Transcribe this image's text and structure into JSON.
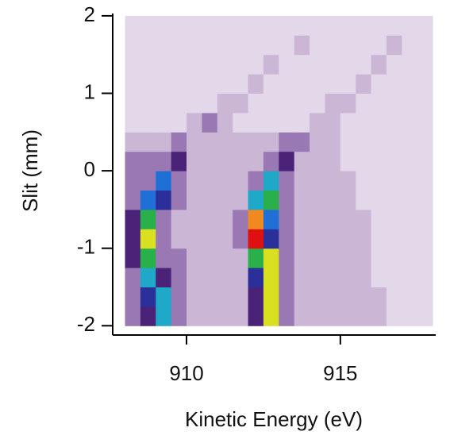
{
  "chart_data": {
    "type": "heatmap",
    "xlabel": "Kinetic Energy (eV)",
    "ylabel": "Slit (mm)",
    "x_edges": [
      908,
      908.5,
      909,
      909.5,
      910,
      910.5,
      911,
      911.5,
      912,
      912.5,
      913,
      913.5,
      914,
      914.5,
      915,
      915.5,
      916,
      916.5,
      917,
      917.5,
      918
    ],
    "y_edges": [
      -2,
      -1.75,
      -1.5,
      -1.25,
      -1,
      -0.75,
      -0.5,
      -0.25,
      0,
      0.25,
      0.5,
      0.75,
      1,
      1.25,
      1.5,
      1.75,
      2
    ],
    "z": [
      [
        2,
        3,
        6,
        2,
        1,
        1,
        1,
        1,
        3,
        8,
        2,
        1,
        1,
        1,
        1,
        1,
        1,
        0,
        0,
        0
      ],
      [
        2,
        4,
        6,
        2,
        1,
        1,
        1,
        1,
        3,
        8,
        2,
        1,
        1,
        1,
        1,
        1,
        1,
        0,
        0,
        0
      ],
      [
        2,
        6,
        3,
        2,
        1,
        1,
        1,
        1,
        4,
        8,
        2,
        1,
        1,
        1,
        1,
        1,
        0,
        0,
        0,
        0
      ],
      [
        3,
        7,
        2,
        2,
        1,
        1,
        1,
        1,
        7,
        8,
        2,
        1,
        1,
        1,
        1,
        1,
        0,
        0,
        0,
        0
      ],
      [
        3,
        8,
        2,
        1,
        1,
        1,
        1,
        2,
        10,
        4,
        2,
        1,
        1,
        1,
        1,
        1,
        0,
        0,
        0,
        0
      ],
      [
        3,
        7,
        2,
        1,
        1,
        1,
        1,
        2,
        9,
        5,
        2,
        1,
        1,
        1,
        1,
        1,
        0,
        0,
        0,
        0
      ],
      [
        2,
        5,
        4,
        2,
        1,
        1,
        1,
        1,
        6,
        7,
        2,
        1,
        1,
        1,
        1,
        0,
        0,
        0,
        0,
        0
      ],
      [
        2,
        2,
        5,
        2,
        1,
        1,
        1,
        1,
        2,
        6,
        2,
        1,
        1,
        1,
        1,
        0,
        0,
        0,
        0,
        0
      ],
      [
        2,
        2,
        2,
        3,
        1,
        1,
        1,
        1,
        1,
        2,
        3,
        1,
        1,
        1,
        0,
        0,
        0,
        0,
        0,
        0
      ],
      [
        1,
        1,
        1,
        2,
        1,
        1,
        1,
        1,
        1,
        1,
        2,
        2,
        1,
        1,
        0,
        0,
        0,
        0,
        0,
        0
      ],
      [
        0,
        0,
        0,
        0,
        1,
        2,
        1,
        0,
        0,
        0,
        0,
        0,
        1,
        1,
        0,
        0,
        0,
        0,
        0,
        0
      ],
      [
        0,
        0,
        0,
        0,
        0,
        0,
        1,
        1,
        0,
        0,
        0,
        0,
        0,
        1,
        1,
        0,
        0,
        0,
        0,
        0
      ],
      [
        0,
        0,
        0,
        0,
        0,
        0,
        0,
        0,
        1,
        0,
        0,
        0,
        0,
        0,
        0,
        1,
        0,
        0,
        0,
        0
      ],
      [
        0,
        0,
        0,
        0,
        0,
        0,
        0,
        0,
        0,
        1,
        0,
        0,
        0,
        0,
        0,
        0,
        1,
        0,
        0,
        0
      ],
      [
        0,
        0,
        0,
        0,
        0,
        0,
        0,
        0,
        0,
        0,
        0,
        1,
        0,
        0,
        0,
        0,
        0,
        1,
        0,
        0
      ],
      [
        0,
        0,
        0,
        0,
        0,
        0,
        0,
        0,
        0,
        0,
        0,
        0,
        0,
        0,
        0,
        0,
        0,
        0,
        0,
        0
      ]
    ],
    "zlim": [
      0,
      10
    ],
    "colorscale": [
      "#e3d8e9",
      "#cbb6d6",
      "#9a78b3",
      "#4a2378",
      "#2a2f9a",
      "#1f6fd6",
      "#1fa8c8",
      "#2ab04a",
      "#d8e020",
      "#f08a20",
      "#e01010"
    ],
    "xlim": [
      907.6,
      918.1
    ],
    "xticks": [
      910,
      915
    ],
    "ylim": [
      -2.12,
      2.03
    ],
    "yticks": [
      -2,
      -1,
      0,
      1,
      2
    ]
  }
}
